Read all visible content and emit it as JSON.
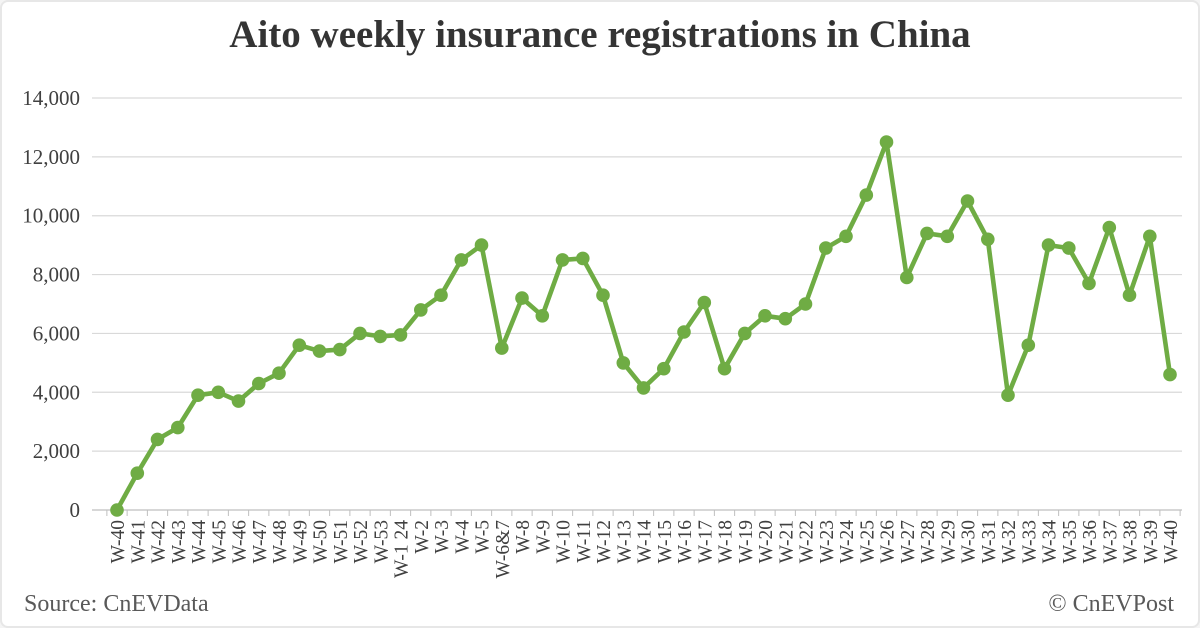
{
  "chart_data": {
    "type": "line",
    "title": "Aito weekly insurance registrations in China",
    "categories": [
      "W-40",
      "W-41",
      "W-42",
      "W-43",
      "W-44",
      "W-45",
      "W-46",
      "W-47",
      "W-48",
      "W-49",
      "W-50",
      "W-51",
      "W-52",
      "W-53",
      "W-1 24",
      "W-2",
      "W-3",
      "W-4",
      "W-5",
      "W-6&7",
      "W-8",
      "W-9",
      "W-10",
      "W-11",
      "W-12",
      "W-13",
      "W-14",
      "W-15",
      "W-16",
      "W-17",
      "W-18",
      "W-19",
      "W-20",
      "W-21",
      "W-22",
      "W-23",
      "W-24",
      "W-25",
      "W-26",
      "W-27",
      "W-28",
      "W-29",
      "W-30",
      "W-31",
      "W-32",
      "W-33",
      "W-34",
      "W-35",
      "W-36",
      "W-37",
      "W-38",
      "W-39",
      "W-40"
    ],
    "values": [
      0,
      1250,
      2400,
      2800,
      3900,
      4000,
      3700,
      4300,
      4650,
      5600,
      5400,
      5450,
      6000,
      5900,
      5950,
      6800,
      7300,
      8500,
      9000,
      5500,
      7200,
      6600,
      8500,
      8550,
      7300,
      5000,
      4150,
      4800,
      6050,
      7050,
      4800,
      6000,
      6600,
      6500,
      7000,
      8900,
      9300,
      10700,
      12500,
      7900,
      9400,
      9300,
      10500,
      9200,
      3900,
      5600,
      9000,
      8900,
      7700,
      9600,
      7300,
      9300,
      4600
    ],
    "xlabel": "",
    "ylabel": "",
    "ylim": [
      0,
      14000
    ],
    "y_tick_values": [
      0,
      2000,
      4000,
      6000,
      8000,
      10000,
      12000,
      14000
    ],
    "y_tick_labels": [
      "0",
      "2,000",
      "4,000",
      "6,000",
      "8,000",
      "10,000",
      "12,000",
      "14,000"
    ],
    "grid": true,
    "legend_position": "none",
    "marker": "circle"
  },
  "footer": {
    "source": "Source: CnEVData",
    "watermark": "© CnEVPost"
  },
  "colors": {
    "line": "#6fac44",
    "marker": "#6fac44",
    "grid": "#d9d9d9",
    "axis": "#bfbfbf",
    "title": "#343434",
    "tick_text": "#404040",
    "footer_text": "#595959",
    "background": "#ffffff"
  }
}
